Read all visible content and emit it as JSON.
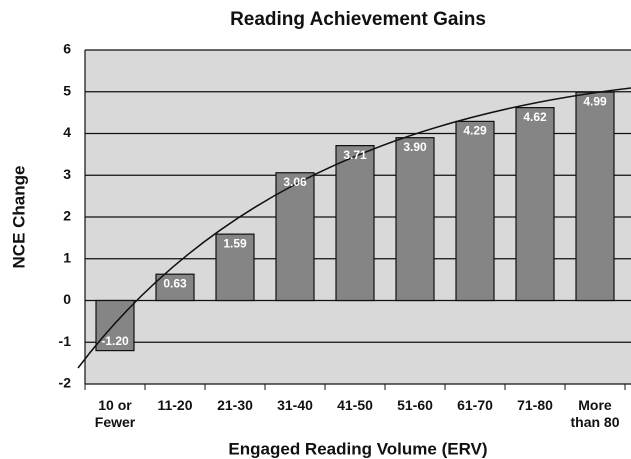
{
  "chart_data": {
    "type": "bar",
    "title": "Reading Achievement Gains",
    "x_label": "Engaged Reading Volume (ERV)",
    "y_label": "NCE Change",
    "categories": [
      "10 or\nFewer",
      "11-20",
      "21-30",
      "31-40",
      "41-50",
      "51-60",
      "61-70",
      "71-80",
      "More\nthan 80"
    ],
    "values": [
      -1.2,
      0.63,
      1.59,
      3.06,
      3.71,
      3.9,
      4.29,
      4.62,
      4.99
    ],
    "value_labels": [
      "-1.20",
      "0.63",
      "1.59",
      "3.06",
      "3.71",
      "3.90",
      "4.29",
      "4.62",
      "4.99"
    ],
    "color": "#858585",
    "ylim": [
      -2,
      6
    ],
    "yticks": [
      -2,
      -1,
      0,
      1,
      2,
      3,
      4,
      5,
      6
    ],
    "grid": true
  }
}
